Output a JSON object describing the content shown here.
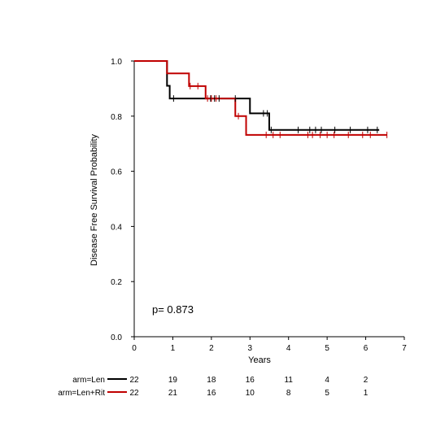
{
  "chart_data": {
    "type": "line",
    "chart_style": "kaplan-meier step plot with censor ticks",
    "xlabel": "Years",
    "ylabel": "Disease Free Survival Probability",
    "xlim": [
      0,
      7
    ],
    "ylim": [
      0,
      1
    ],
    "xticks": [
      0,
      1,
      2,
      3,
      4,
      5,
      6,
      7
    ],
    "yticks": [
      0.0,
      0.2,
      0.4,
      0.6,
      0.8,
      1.0
    ],
    "yticks_labels": [
      "0.0",
      "0.2",
      "0.4",
      "0.6",
      "0.8",
      "1.0"
    ],
    "grid": false,
    "annotation": "p= 0.873",
    "series": [
      {
        "name": "arm=Len",
        "color": "#000000",
        "x": [
          0,
          0.85,
          0.92,
          2.65,
          3.0,
          3.5,
          6.35
        ],
        "y": [
          1.0,
          0.91,
          0.864,
          0.864,
          0.81,
          0.75,
          0.75
        ],
        "censor_x": [
          1.02,
          1.98,
          2.08,
          2.2,
          2.62,
          3.35,
          3.45,
          3.55,
          4.25,
          4.55,
          4.7,
          4.85,
          5.2,
          5.6,
          6.05,
          6.3
        ],
        "at_risk": [
          22,
          19,
          18,
          16,
          11,
          4,
          2
        ]
      },
      {
        "name": "arm=Len+Rit",
        "color": "#c00000",
        "x": [
          0,
          0.85,
          1.42,
          1.85,
          2.62,
          2.9,
          6.55
        ],
        "y": [
          1.0,
          0.955,
          0.909,
          0.864,
          0.8,
          0.732,
          0.732
        ],
        "censor_x": [
          1.45,
          1.65,
          1.9,
          2.0,
          2.12,
          2.7,
          3.42,
          3.6,
          3.78,
          4.5,
          4.62,
          4.82,
          5.0,
          5.18,
          5.55,
          5.92,
          6.12,
          6.55
        ],
        "at_risk": [
          22,
          21,
          16,
          10,
          8,
          5,
          1
        ]
      }
    ],
    "at_risk_times": [
      0,
      1,
      2,
      3,
      4,
      5,
      6
    ]
  }
}
